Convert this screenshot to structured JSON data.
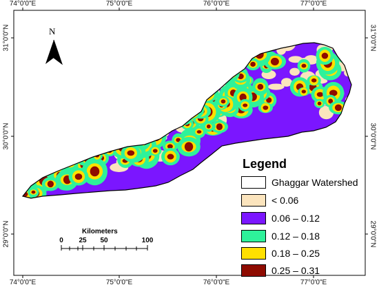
{
  "map": {
    "coords": {
      "top": [
        "74°0'0\"E",
        "75°0'0\"E",
        "76°0'0\"E",
        "77°0'0\"E"
      ],
      "bottom": [
        "74°0'0\"E",
        "75°0'0\"E",
        "76°0'0\"E",
        "77°0'0\"E"
      ],
      "left": [
        "31°0'0\"N",
        "30°0'0\"N",
        "29°0'0\"N"
      ],
      "right": [
        "31°0'0\"N",
        "30°0'0\"N",
        "29°0'0\"N"
      ]
    },
    "north_label": "N",
    "colors": {
      "class1": "#fbe4bd",
      "class2": "#7b16ff",
      "class3": "#2ef29a",
      "class4": "#ffe000",
      "class5": "#8e0b00",
      "outline": "#000000"
    }
  },
  "legend": {
    "title": "Legend",
    "items": [
      {
        "label": "Ghaggar Watershed",
        "color": "#ffffff"
      },
      {
        "label": "< 0.06",
        "color": "#fbe4bd"
      },
      {
        "label": "0.06 – 0.12",
        "color": "#7b16ff"
      },
      {
        "label": "0.12 – 0.18",
        "color": "#2ef29a"
      },
      {
        "label": "0.18 – 0.25",
        "color": "#ffe000"
      },
      {
        "label": "0.25 – 0.31",
        "color": "#8e0b00"
      }
    ]
  },
  "scale_bar": {
    "title": "Kilometers",
    "ticks": [
      "0",
      "25",
      "50",
      "100"
    ]
  }
}
